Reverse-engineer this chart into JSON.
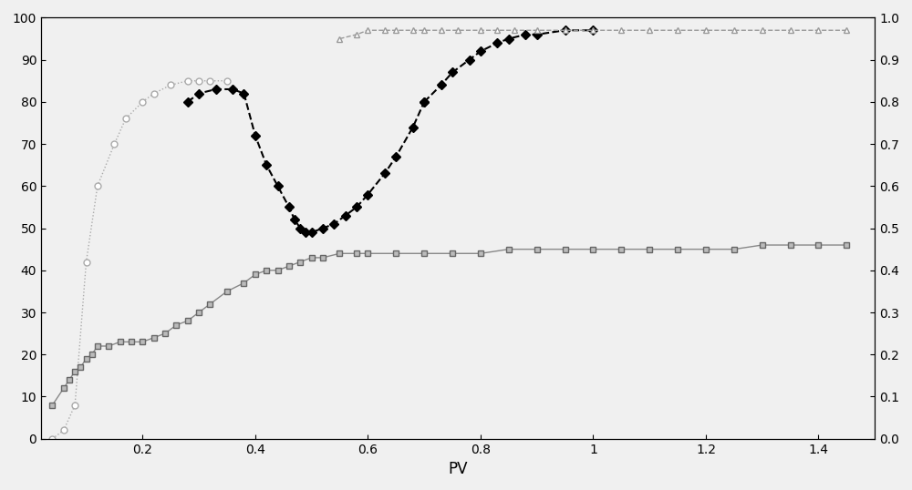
{
  "xlabel": "PV",
  "xlim": [
    0.02,
    1.5
  ],
  "ylim_left": [
    0,
    100
  ],
  "ylim_right": [
    0,
    1
  ],
  "xticks": [
    0.2,
    0.4,
    0.6,
    0.8,
    1.0,
    1.2,
    1.4
  ],
  "xtick_labels": [
    "0.2",
    "0.4",
    "0.6",
    "0.8",
    "1",
    "1.2",
    "1.4"
  ],
  "yticks_left": [
    0,
    10,
    20,
    30,
    40,
    50,
    60,
    70,
    80,
    90,
    100
  ],
  "yticks_right": [
    0,
    0.1,
    0.2,
    0.3,
    0.4,
    0.5,
    0.6,
    0.7,
    0.8,
    0.9,
    1.0
  ],
  "curve1_x": [
    0.04,
    0.06,
    0.08,
    0.1,
    0.12,
    0.15,
    0.17,
    0.2,
    0.22,
    0.25,
    0.28,
    0.3,
    0.32,
    0.35
  ],
  "curve1_y": [
    0,
    2,
    8,
    42,
    60,
    70,
    76,
    80,
    82,
    84,
    85,
    85,
    85,
    85
  ],
  "curve1_color": "#aaaaaa",
  "curve1_linestyle": "dotted",
  "curve1_marker": "o",
  "curve1_markersize": 5,
  "curve1_linewidth": 1.0,
  "curve2_x": [
    0.28,
    0.3,
    0.33,
    0.36,
    0.38,
    0.4,
    0.42,
    0.44,
    0.46,
    0.47,
    0.48,
    0.49,
    0.5,
    0.52,
    0.54,
    0.56,
    0.58,
    0.6,
    0.63,
    0.65,
    0.68,
    0.7
  ],
  "curve2_y": [
    80,
    82,
    83,
    83,
    82,
    72,
    65,
    60,
    55,
    52,
    50,
    49,
    49,
    50,
    51,
    53,
    55,
    58,
    63,
    67,
    74,
    80
  ],
  "curve2_color": "#000000",
  "curve2_linestyle": "dashed",
  "curve2_marker": "D",
  "curve2_markersize": 5,
  "curve2_linewidth": 1.5,
  "curve2b_x": [
    0.7,
    0.73,
    0.75,
    0.78,
    0.8,
    0.83,
    0.85,
    0.88,
    0.9,
    0.95,
    1.0
  ],
  "curve2b_y": [
    80,
    84,
    87,
    90,
    92,
    94,
    95,
    96,
    96,
    97,
    97
  ],
  "curve3_x": [
    0.04,
    0.06,
    0.07,
    0.08,
    0.09,
    0.1,
    0.11,
    0.12,
    0.14,
    0.16,
    0.18,
    0.2,
    0.22,
    0.24,
    0.26,
    0.28,
    0.3,
    0.32,
    0.35,
    0.38,
    0.4,
    0.42,
    0.44,
    0.46,
    0.48,
    0.5,
    0.52,
    0.55,
    0.58,
    0.6,
    0.65,
    0.7,
    0.75,
    0.8,
    0.85,
    0.9,
    0.95,
    1.0,
    1.05,
    1.1,
    1.15,
    1.2,
    1.25,
    1.3,
    1.35,
    1.4,
    1.45
  ],
  "curve3_y": [
    8,
    12,
    14,
    16,
    17,
    19,
    20,
    22,
    22,
    23,
    23,
    23,
    24,
    25,
    27,
    28,
    30,
    32,
    35,
    37,
    39,
    40,
    40,
    41,
    42,
    43,
    43,
    44,
    44,
    44,
    44,
    44,
    44,
    44,
    45,
    45,
    45,
    45,
    45,
    45,
    45,
    45,
    45,
    46,
    46,
    46,
    46
  ],
  "curve3_color": "#888888",
  "curve3_linestyle": "solid",
  "curve3_marker": "s",
  "curve3_markersize": 5,
  "curve3_linewidth": 1.0,
  "curve4_x": [
    0.55,
    0.58,
    0.6,
    0.63,
    0.65,
    0.68,
    0.7,
    0.73,
    0.76,
    0.8,
    0.83,
    0.86,
    0.9,
    0.95,
    1.0,
    1.05,
    1.1,
    1.15,
    1.2,
    1.25,
    1.3,
    1.35,
    1.4,
    1.45
  ],
  "curve4_y": [
    95,
    96,
    97,
    97,
    97,
    97,
    97,
    97,
    97,
    97,
    97,
    97,
    97,
    97,
    97,
    97,
    97,
    97,
    97,
    97,
    97,
    97,
    97,
    97
  ],
  "curve4_color": "#999999",
  "curve4_linestyle": "dashed",
  "curve4_marker": "^",
  "curve4_markersize": 5,
  "curve4_linewidth": 1.0,
  "background_color": "#f0f0f0",
  "axes_color": "#000000"
}
